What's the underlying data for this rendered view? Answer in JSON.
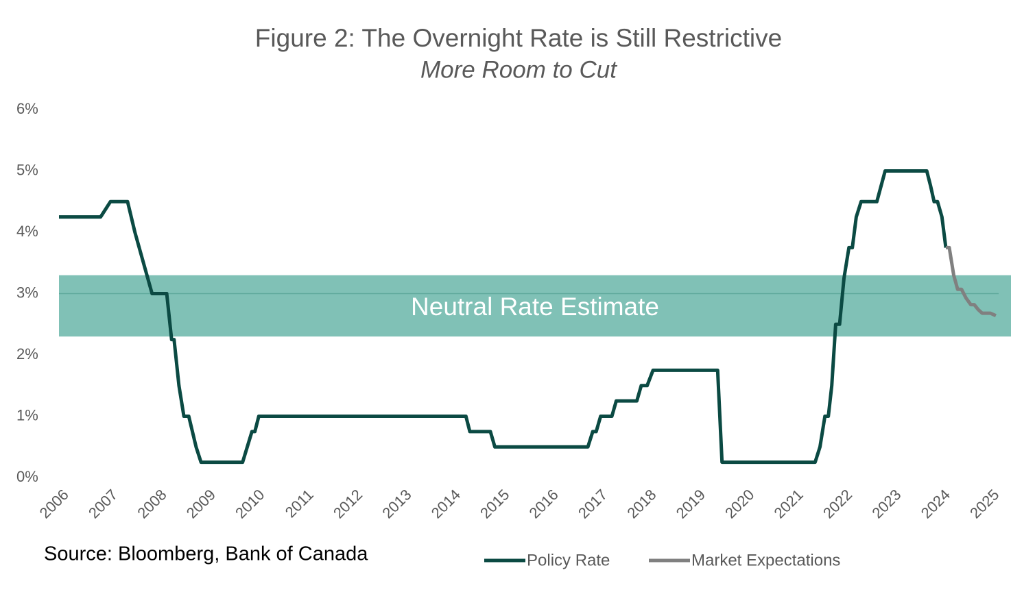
{
  "chart_data": {
    "type": "line",
    "title": "Figure 2: The Overnight Rate is Still Restrictive",
    "subtitle": "More Room to Cut",
    "source": "Source: Bloomberg, Bank of Canada",
    "xlim": [
      2006,
      2025.3
    ],
    "xticks": [
      2006,
      2007,
      2008,
      2009,
      2010,
      2011,
      2012,
      2013,
      2014,
      2015,
      2016,
      2017,
      2018,
      2019,
      2020,
      2021,
      2022,
      2023,
      2024,
      2025
    ],
    "ylim": [
      0,
      6
    ],
    "yticks": [
      {
        "value": 0,
        "label": "0%"
      },
      {
        "value": 1,
        "label": "1%"
      },
      {
        "value": 2,
        "label": "2%"
      },
      {
        "value": 3,
        "label": "3%"
      },
      {
        "value": 4,
        "label": "4%"
      },
      {
        "value": 5,
        "label": "5%"
      },
      {
        "value": 6,
        "label": "6%"
      }
    ],
    "band": {
      "label": "Neutral Rate Estimate",
      "low": 2.3,
      "high": 3.3,
      "mid": 3,
      "color": "#80c1b6"
    },
    "legend": "bottom",
    "series": [
      {
        "name": "Policy Rate",
        "color": "#0b4a43",
        "x": [
          2006.0,
          2006.85,
          2007.05,
          2007.4,
          2007.55,
          2007.9,
          2008.2,
          2008.3,
          2008.35,
          2008.45,
          2008.55,
          2008.65,
          2008.8,
          2008.9,
          2009.75,
          2009.94,
          2010.0,
          2010.08,
          2014.31,
          2014.39,
          2014.81,
          2014.9,
          2016.8,
          2016.9,
          2016.97,
          2017.06,
          2017.29,
          2017.38,
          2017.8,
          2017.89,
          2018.01,
          2018.13,
          2019.45,
          2019.54,
          2021.44,
          2021.54,
          2021.64,
          2021.71,
          2021.78,
          2021.86,
          2021.94,
          2022.03,
          2022.13,
          2022.2,
          2022.28,
          2022.38,
          2022.7,
          2022.87,
          2023.72,
          2023.8,
          2023.87,
          2023.94,
          2024.03,
          2024.11
        ],
        "values": [
          4.25,
          4.25,
          4.5,
          4.5,
          4.0,
          3.0,
          3.0,
          2.25,
          2.25,
          1.5,
          1.0,
          1.0,
          0.5,
          0.25,
          0.25,
          0.75,
          0.75,
          1.0,
          1.0,
          0.75,
          0.75,
          0.5,
          0.5,
          0.75,
          0.75,
          1.0,
          1.0,
          1.25,
          1.25,
          1.5,
          1.5,
          1.75,
          1.75,
          0.25,
          0.25,
          0.5,
          1.0,
          1.0,
          1.5,
          2.5,
          2.5,
          3.25,
          3.75,
          3.75,
          4.25,
          4.5,
          4.5,
          5.0,
          5.0,
          4.75,
          4.5,
          4.5,
          4.25,
          3.75
        ]
      },
      {
        "name": "Market Expectations",
        "color": "#808080",
        "x": [
          2024.11,
          2024.18,
          2024.27,
          2024.35,
          2024.43,
          2024.52,
          2024.62,
          2024.69,
          2024.77,
          2024.85,
          2025.02,
          2025.13
        ],
        "values": [
          3.75,
          3.75,
          3.3,
          3.07,
          3.07,
          2.93,
          2.82,
          2.82,
          2.74,
          2.68,
          2.68,
          2.64
        ]
      }
    ]
  }
}
